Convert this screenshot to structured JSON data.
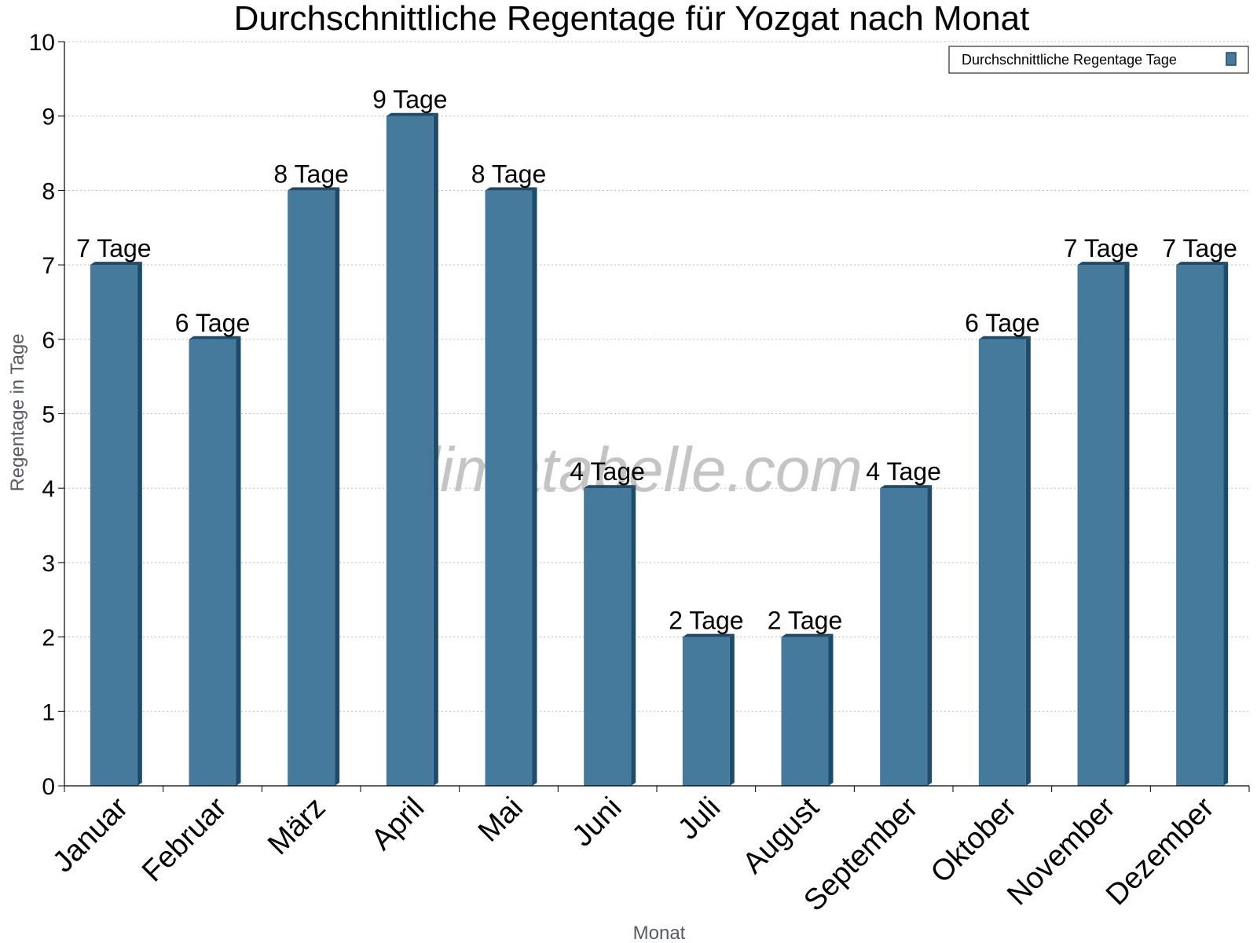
{
  "chart_data": {
    "type": "bar",
    "title": "Durchschnittliche Regentage für Yozgat nach Monat",
    "xlabel": "Monat",
    "ylabel": "Regentage in Tage",
    "ylim": [
      0,
      10
    ],
    "yticks": [
      "0",
      "1",
      "2",
      "3",
      "4",
      "5",
      "6",
      "7",
      "8",
      "9",
      "10"
    ],
    "grid": true,
    "legend_position": "top-right",
    "categories": [
      "Januar",
      "Februar",
      "März",
      "April",
      "Mai",
      "Juni",
      "Juli",
      "August",
      "September",
      "Oktober",
      "November",
      "Dezember"
    ],
    "series": [
      {
        "name": "Durchschnittliche Regentage Tage",
        "values": [
          7,
          6,
          8,
          9,
          8,
          4,
          2,
          2,
          4,
          6,
          7,
          7
        ],
        "labels": [
          "7 Tage",
          "6 Tage",
          "8 Tage",
          "9 Tage",
          "8 Tage",
          "4 Tage",
          "2 Tage",
          "2 Tage",
          "4 Tage",
          "6 Tage",
          "7 Tage",
          "7 Tage"
        ]
      }
    ],
    "colors": {
      "bar": "#457a9c",
      "bar_side": "#1e4b6a",
      "bar_top": "#1e4b6a",
      "grid": "#bbbbbb"
    },
    "watermark": "klimatabelle.com"
  }
}
